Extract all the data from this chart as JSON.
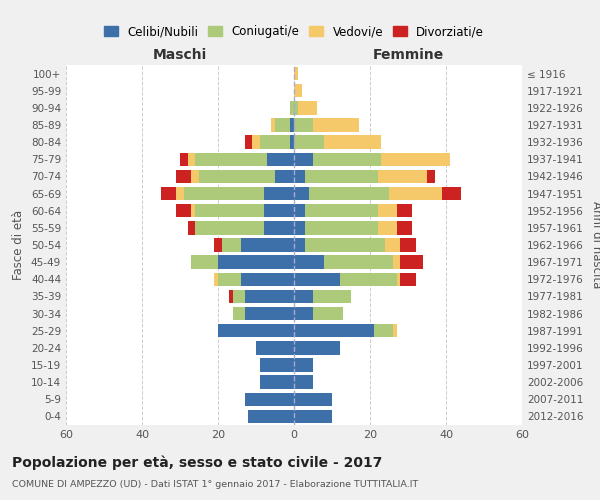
{
  "age_groups": [
    "0-4",
    "5-9",
    "10-14",
    "15-19",
    "20-24",
    "25-29",
    "30-34",
    "35-39",
    "40-44",
    "45-49",
    "50-54",
    "55-59",
    "60-64",
    "65-69",
    "70-74",
    "75-79",
    "80-84",
    "85-89",
    "90-94",
    "95-99",
    "100+"
  ],
  "birth_years": [
    "2012-2016",
    "2007-2011",
    "2002-2006",
    "1997-2001",
    "1992-1996",
    "1987-1991",
    "1982-1986",
    "1977-1981",
    "1972-1976",
    "1967-1971",
    "1962-1966",
    "1957-1961",
    "1952-1956",
    "1947-1951",
    "1942-1946",
    "1937-1941",
    "1932-1936",
    "1927-1931",
    "1922-1926",
    "1917-1921",
    "≤ 1916"
  ],
  "colors": {
    "celibe": "#3d6fa8",
    "coniugato": "#adc97a",
    "vedovo": "#f5c96a",
    "divorziato": "#cc2222"
  },
  "males": {
    "celibe": [
      12,
      13,
      9,
      9,
      10,
      20,
      13,
      13,
      14,
      20,
      14,
      8,
      8,
      8,
      5,
      7,
      1,
      1,
      0,
      0,
      0
    ],
    "coniugato": [
      0,
      0,
      0,
      0,
      0,
      0,
      3,
      3,
      6,
      7,
      5,
      18,
      18,
      21,
      20,
      19,
      8,
      4,
      1,
      0,
      0
    ],
    "vedovo": [
      0,
      0,
      0,
      0,
      0,
      0,
      0,
      0,
      1,
      0,
      0,
      0,
      1,
      2,
      2,
      2,
      2,
      1,
      0,
      0,
      0
    ],
    "divorziato": [
      0,
      0,
      0,
      0,
      0,
      0,
      0,
      1,
      0,
      0,
      2,
      2,
      4,
      4,
      4,
      2,
      2,
      0,
      0,
      0,
      0
    ]
  },
  "females": {
    "celibe": [
      10,
      10,
      5,
      5,
      12,
      21,
      5,
      5,
      12,
      8,
      3,
      3,
      3,
      4,
      3,
      5,
      0,
      0,
      0,
      0,
      0
    ],
    "coniugato": [
      0,
      0,
      0,
      0,
      0,
      5,
      8,
      10,
      15,
      18,
      21,
      19,
      19,
      21,
      19,
      18,
      8,
      5,
      1,
      0,
      0
    ],
    "vedovo": [
      0,
      0,
      0,
      0,
      0,
      1,
      0,
      0,
      1,
      2,
      4,
      5,
      5,
      14,
      13,
      18,
      15,
      12,
      5,
      2,
      1
    ],
    "divorziato": [
      0,
      0,
      0,
      0,
      0,
      0,
      0,
      0,
      4,
      6,
      4,
      4,
      4,
      5,
      2,
      0,
      0,
      0,
      0,
      0,
      0
    ]
  },
  "xlim": 60,
  "title": "Popolazione per età, sesso e stato civile - 2017",
  "subtitle": "COMUNE DI AMPEZZO (UD) - Dati ISTAT 1° gennaio 2017 - Elaborazione TUTTITALIA.IT",
  "legend_labels": [
    "Celibi/Nubili",
    "Coniugati/e",
    "Vedovi/e",
    "Divorziati/e"
  ],
  "xlabel_left": "Maschi",
  "xlabel_right": "Femmine",
  "ylabel_left": "Fasce di età",
  "ylabel_right": "Anni di nascita",
  "bg_color": "#f0f0f0",
  "plot_bg_color": "#ffffff"
}
